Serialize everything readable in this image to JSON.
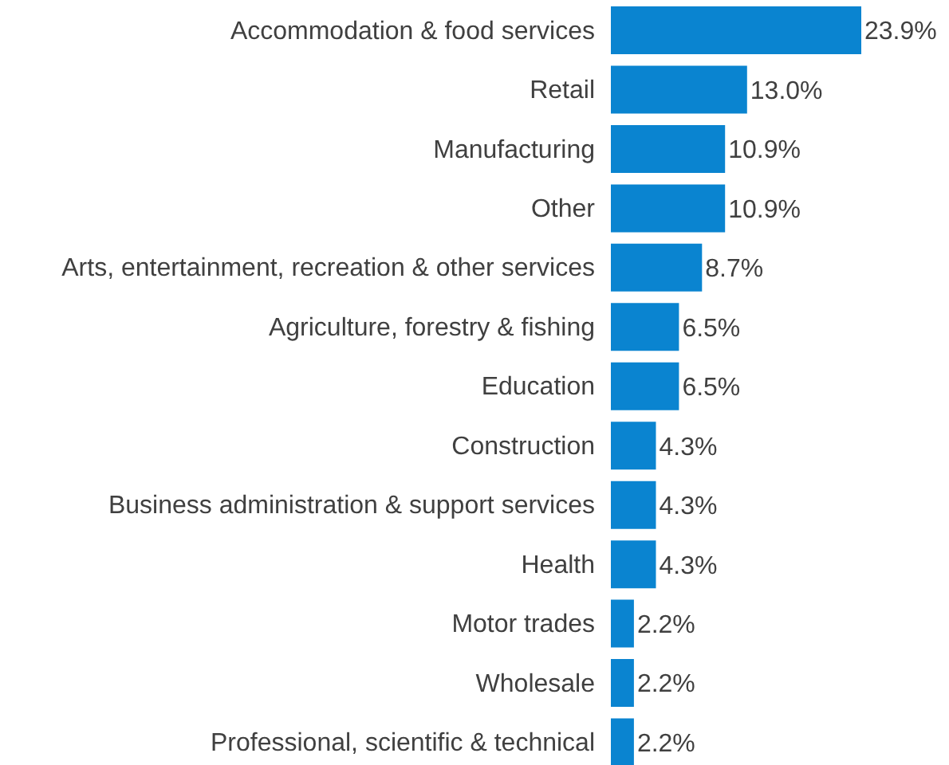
{
  "chart_data": {
    "type": "bar",
    "orientation": "horizontal",
    "categories": [
      "Accommodation & food services",
      "Retail",
      "Manufacturing",
      "Other",
      "Arts, entertainment, recreation & other services",
      "Agriculture, forestry & fishing",
      "Education",
      "Construction",
      "Business administration & support services",
      "Health",
      "Motor trades",
      "Wholesale",
      "Professional, scientific & technical"
    ],
    "values": [
      23.9,
      13.0,
      10.9,
      10.9,
      8.7,
      6.5,
      6.5,
      4.3,
      4.3,
      4.3,
      2.2,
      2.2,
      2.2
    ],
    "value_labels": [
      "23.9%",
      "13.0%",
      "10.9%",
      "10.9%",
      "8.7%",
      "6.5%",
      "6.5%",
      "4.3%",
      "4.3%",
      "4.3%",
      "2.2%",
      "2.2%",
      "2.2%"
    ],
    "color": "#0a84d0",
    "tick_labels": "y",
    "grid": false,
    "legend": false
  }
}
